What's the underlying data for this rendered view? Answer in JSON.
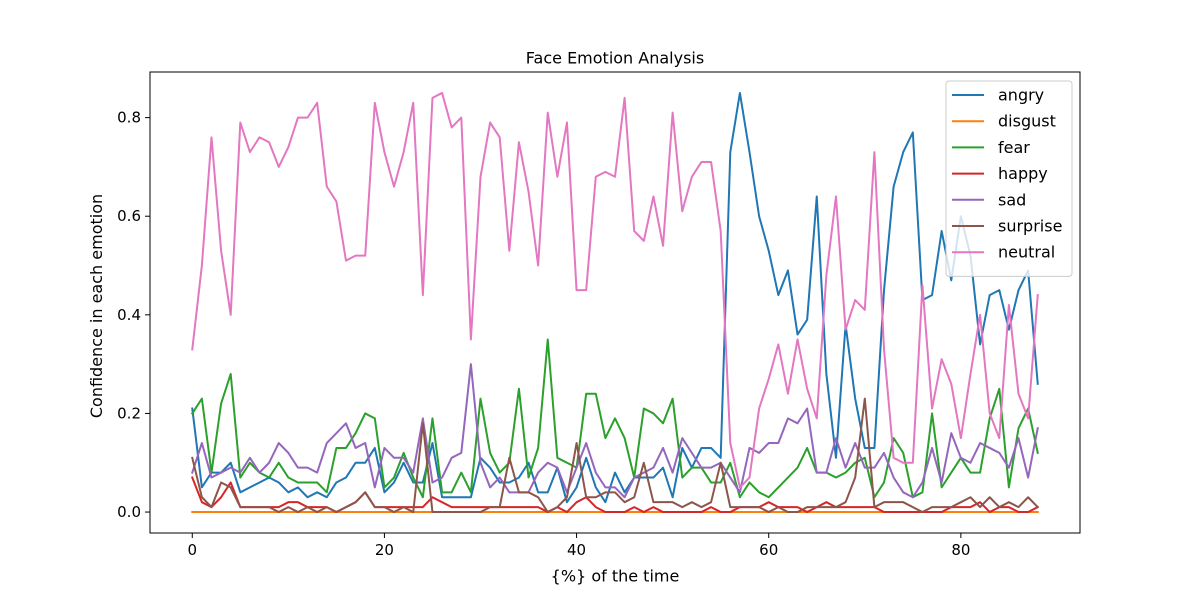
{
  "chart_data": {
    "type": "line",
    "title": "Face Emotion Analysis",
    "xlabel": "{%} of the time",
    "ylabel": "Confidence in each emotion",
    "xlim": [
      -4.4,
      92.4
    ],
    "ylim": [
      -0.0425,
      0.8925
    ],
    "xticks": [
      0,
      20,
      40,
      60,
      80
    ],
    "yticks": [
      0.0,
      0.2,
      0.4,
      0.6,
      0.8
    ],
    "xtick_labels": [
      "0",
      "20",
      "40",
      "60",
      "80"
    ],
    "ytick_labels": [
      "0.0",
      "0.2",
      "0.4",
      "0.6",
      "0.8"
    ],
    "legend_position": "top-right",
    "grid": false,
    "series": [
      {
        "name": "angry",
        "color": "#1f77b4",
        "values": [
          0.21,
          0.05,
          0.08,
          0.08,
          0.1,
          0.04,
          0.05,
          0.06,
          0.07,
          0.06,
          0.04,
          0.05,
          0.03,
          0.04,
          0.03,
          0.06,
          0.07,
          0.1,
          0.1,
          0.13,
          0.04,
          0.06,
          0.1,
          0.06,
          0.06,
          0.14,
          0.03,
          0.03,
          0.03,
          0.03,
          0.11,
          0.09,
          0.06,
          0.06,
          0.07,
          0.1,
          0.04,
          0.04,
          0.09,
          0.02,
          0.05,
          0.11,
          0.05,
          0.02,
          0.08,
          0.04,
          0.07,
          0.07,
          0.07,
          0.09,
          0.03,
          0.13,
          0.09,
          0.13,
          0.13,
          0.11,
          0.73,
          0.85,
          0.73,
          0.6,
          0.53,
          0.44,
          0.49,
          0.36,
          0.39,
          0.64,
          0.28,
          0.11,
          0.38,
          0.23,
          0.13,
          0.13,
          0.45,
          0.66,
          0.73,
          0.77,
          0.43,
          0.44,
          0.57,
          0.47,
          0.6,
          0.52,
          0.34,
          0.44,
          0.45,
          0.37,
          0.45,
          0.49,
          0.26
        ]
      },
      {
        "name": "disgust",
        "color": "#ff7f0e",
        "values": [
          0,
          0,
          0,
          0,
          0,
          0,
          0,
          0,
          0,
          0,
          0,
          0,
          0,
          0,
          0,
          0,
          0,
          0,
          0,
          0,
          0,
          0,
          0,
          0,
          0,
          0,
          0,
          0,
          0,
          0,
          0,
          0,
          0,
          0,
          0,
          0,
          0,
          0,
          0,
          0,
          0,
          0,
          0,
          0,
          0,
          0,
          0,
          0,
          0,
          0,
          0,
          0,
          0,
          0,
          0,
          0,
          0,
          0,
          0,
          0,
          0,
          0,
          0,
          0,
          0,
          0,
          0,
          0,
          0,
          0,
          0,
          0,
          0,
          0,
          0,
          0,
          0,
          0,
          0,
          0,
          0,
          0,
          0,
          0,
          0,
          0,
          0,
          0,
          0
        ]
      },
      {
        "name": "fear",
        "color": "#2ca02c",
        "values": [
          0.2,
          0.23,
          0.08,
          0.22,
          0.28,
          0.07,
          0.1,
          0.08,
          0.07,
          0.1,
          0.07,
          0.06,
          0.06,
          0.06,
          0.04,
          0.13,
          0.13,
          0.16,
          0.2,
          0.19,
          0.05,
          0.07,
          0.12,
          0.07,
          0.03,
          0.19,
          0.04,
          0.04,
          0.08,
          0.04,
          0.23,
          0.12,
          0.08,
          0.1,
          0.25,
          0.07,
          0.13,
          0.35,
          0.11,
          0.1,
          0.09,
          0.24,
          0.24,
          0.15,
          0.19,
          0.15,
          0.07,
          0.21,
          0.2,
          0.18,
          0.23,
          0.07,
          0.09,
          0.09,
          0.06,
          0.06,
          0.1,
          0.03,
          0.06,
          0.04,
          0.03,
          0.05,
          0.07,
          0.09,
          0.13,
          0.08,
          0.08,
          0.07,
          0.08,
          0.1,
          0.11,
          0.03,
          0.06,
          0.15,
          0.12,
          0.03,
          0.04,
          0.2,
          0.05,
          0.08,
          0.11,
          0.08,
          0.08,
          0.19,
          0.25,
          0.05,
          0.17,
          0.21,
          0.12
        ]
      },
      {
        "name": "happy",
        "color": "#d62728",
        "values": [
          0.07,
          0.02,
          0.01,
          0.03,
          0.06,
          0.01,
          0.01,
          0.01,
          0.01,
          0.01,
          0.02,
          0.02,
          0.01,
          0.01,
          0.01,
          0.0,
          0.01,
          0.02,
          0.04,
          0.01,
          0.01,
          0.01,
          0.01,
          0.01,
          0.01,
          0.03,
          0.02,
          0.01,
          0.01,
          0.01,
          0.01,
          0.01,
          0.01,
          0.01,
          0.01,
          0.01,
          0.01,
          0.0,
          0.01,
          0.0,
          0.02,
          0.03,
          0.01,
          0.0,
          0.0,
          0.0,
          0.01,
          0.0,
          0.01,
          0.0,
          0.0,
          0.0,
          0.0,
          0.0,
          0.01,
          0.0,
          0.0,
          0.01,
          0.01,
          0.01,
          0.02,
          0.01,
          0.01,
          0.01,
          0.0,
          0.01,
          0.02,
          0.01,
          0.01,
          0.01,
          0.01,
          0.01,
          0.0,
          0.0,
          0.0,
          0.0,
          0.0,
          0.0,
          0.0,
          0.01,
          0.01,
          0.01,
          0.02,
          0.0,
          0.01,
          0.01,
          0.0,
          0.0,
          0.01
        ]
      },
      {
        "name": "sad",
        "color": "#9467bd",
        "values": [
          0.08,
          0.14,
          0.07,
          0.08,
          0.09,
          0.08,
          0.11,
          0.08,
          0.1,
          0.14,
          0.12,
          0.09,
          0.09,
          0.08,
          0.14,
          0.16,
          0.18,
          0.13,
          0.14,
          0.05,
          0.13,
          0.11,
          0.11,
          0.08,
          0.19,
          0.06,
          0.07,
          0.11,
          0.12,
          0.3,
          0.1,
          0.05,
          0.07,
          0.04,
          0.04,
          0.04,
          0.08,
          0.1,
          0.09,
          0.04,
          0.09,
          0.14,
          0.08,
          0.05,
          0.05,
          0.03,
          0.07,
          0.08,
          0.09,
          0.13,
          0.08,
          0.15,
          0.12,
          0.09,
          0.09,
          0.1,
          0.07,
          0.04,
          0.13,
          0.12,
          0.14,
          0.14,
          0.19,
          0.18,
          0.21,
          0.08,
          0.08,
          0.15,
          0.09,
          0.14,
          0.09,
          0.09,
          0.12,
          0.07,
          0.04,
          0.03,
          0.06,
          0.13,
          0.06,
          0.16,
          0.11,
          0.1,
          0.14,
          0.13,
          0.12,
          0.09,
          0.15,
          0.07,
          0.17
        ]
      },
      {
        "name": "surprise",
        "color": "#8c564b",
        "values": [
          0.11,
          0.03,
          0.01,
          0.06,
          0.05,
          0.01,
          0.01,
          0.01,
          0.01,
          0.0,
          0.01,
          0.0,
          0.01,
          0.0,
          0.01,
          0.0,
          0.01,
          0.02,
          0.04,
          0.01,
          0.01,
          0.0,
          0.01,
          0.0,
          0.18,
          0.0,
          0.0,
          0.0,
          0.0,
          0.0,
          0.0,
          0.01,
          0.01,
          0.11,
          0.04,
          0.04,
          0.03,
          0.0,
          0.01,
          0.03,
          0.14,
          0.03,
          0.03,
          0.04,
          0.04,
          0.02,
          0.03,
          0.1,
          0.02,
          0.02,
          0.02,
          0.01,
          0.02,
          0.01,
          0.02,
          0.1,
          0.01,
          0.01,
          0.01,
          0.01,
          0.0,
          0.01,
          0.0,
          0.0,
          0.01,
          0.01,
          0.01,
          0.01,
          0.02,
          0.07,
          0.23,
          0.01,
          0.02,
          0.02,
          0.02,
          0.01,
          0.0,
          0.01,
          0.01,
          0.01,
          0.02,
          0.03,
          0.01,
          0.03,
          0.01,
          0.02,
          0.01,
          0.03,
          0.01
        ]
      },
      {
        "name": "neutral",
        "color": "#e377c2",
        "values": [
          0.33,
          0.5,
          0.76,
          0.53,
          0.4,
          0.79,
          0.73,
          0.76,
          0.75,
          0.7,
          0.74,
          0.8,
          0.8,
          0.83,
          0.66,
          0.63,
          0.51,
          0.52,
          0.52,
          0.83,
          0.73,
          0.66,
          0.73,
          0.83,
          0.44,
          0.84,
          0.85,
          0.78,
          0.8,
          0.35,
          0.68,
          0.79,
          0.76,
          0.53,
          0.75,
          0.65,
          0.5,
          0.81,
          0.68,
          0.79,
          0.45,
          0.45,
          0.68,
          0.69,
          0.68,
          0.84,
          0.57,
          0.55,
          0.64,
          0.54,
          0.81,
          0.61,
          0.68,
          0.71,
          0.71,
          0.57,
          0.14,
          0.05,
          0.07,
          0.21,
          0.27,
          0.34,
          0.24,
          0.35,
          0.25,
          0.19,
          0.48,
          0.64,
          0.37,
          0.43,
          0.41,
          0.73,
          0.33,
          0.11,
          0.1,
          0.1,
          0.46,
          0.21,
          0.31,
          0.26,
          0.15,
          0.28,
          0.4,
          0.2,
          0.15,
          0.42,
          0.24,
          0.19,
          0.44
        ]
      }
    ]
  }
}
